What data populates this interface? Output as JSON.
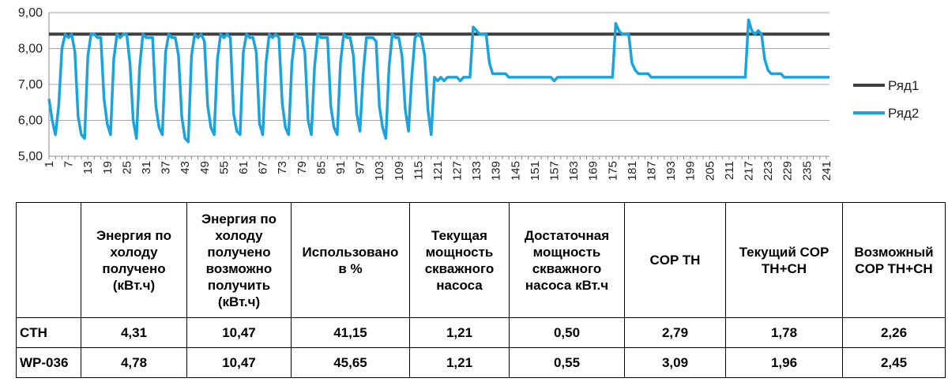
{
  "chart_data": {
    "type": "line",
    "title": "",
    "xlabel": "",
    "ylabel": "",
    "ylim": [
      5,
      9
    ],
    "yticks": [
      "5,00",
      "6,00",
      "7,00",
      "8,00",
      "9,00"
    ],
    "x_min": 1,
    "x_max": 242,
    "xticks": [
      1,
      7,
      13,
      19,
      25,
      31,
      37,
      43,
      49,
      55,
      61,
      67,
      73,
      79,
      85,
      91,
      97,
      103,
      109,
      115,
      121,
      127,
      133,
      139,
      145,
      151,
      157,
      163,
      169,
      175,
      181,
      187,
      193,
      199,
      205,
      211,
      217,
      223,
      229,
      235,
      241
    ],
    "grid": "horizontal",
    "legend": "right",
    "series": [
      {
        "name": "Ряд1",
        "color": "#404040",
        "points": [
          [
            1,
            8.4
          ],
          [
            242,
            8.4
          ]
        ]
      },
      {
        "name": "Ряд2",
        "color": "#1aa3dc",
        "points": [
          [
            1,
            6.6
          ],
          [
            2,
            6.0
          ],
          [
            3,
            5.6
          ],
          [
            4,
            6.4
          ],
          [
            5,
            8.0
          ],
          [
            6,
            8.4
          ],
          [
            7,
            8.3
          ],
          [
            8,
            8.4
          ],
          [
            9,
            7.9
          ],
          [
            10,
            6.1
          ],
          [
            11,
            5.6
          ],
          [
            12,
            5.5
          ],
          [
            13,
            7.8
          ],
          [
            14,
            8.4
          ],
          [
            15,
            8.4
          ],
          [
            16,
            8.3
          ],
          [
            17,
            8.3
          ],
          [
            18,
            6.6
          ],
          [
            19,
            5.9
          ],
          [
            20,
            5.6
          ],
          [
            21,
            7.7
          ],
          [
            22,
            8.4
          ],
          [
            23,
            8.3
          ],
          [
            24,
            8.4
          ],
          [
            25,
            8.4
          ],
          [
            26,
            7.6
          ],
          [
            27,
            6.0
          ],
          [
            28,
            5.5
          ],
          [
            29,
            7.5
          ],
          [
            30,
            8.4
          ],
          [
            31,
            8.3
          ],
          [
            32,
            8.3
          ],
          [
            33,
            8.3
          ],
          [
            34,
            6.4
          ],
          [
            35,
            5.8
          ],
          [
            36,
            5.6
          ],
          [
            37,
            7.9
          ],
          [
            38,
            8.4
          ],
          [
            39,
            8.3
          ],
          [
            40,
            8.3
          ],
          [
            41,
            7.8
          ],
          [
            42,
            6.1
          ],
          [
            43,
            5.5
          ],
          [
            44,
            5.4
          ],
          [
            45,
            7.8
          ],
          [
            46,
            8.4
          ],
          [
            47,
            8.3
          ],
          [
            48,
            8.4
          ],
          [
            49,
            8.2
          ],
          [
            50,
            6.4
          ],
          [
            51,
            5.8
          ],
          [
            52,
            5.6
          ],
          [
            53,
            7.7
          ],
          [
            54,
            8.4
          ],
          [
            55,
            8.3
          ],
          [
            56,
            8.4
          ],
          [
            57,
            8.3
          ],
          [
            58,
            6.2
          ],
          [
            59,
            5.7
          ],
          [
            60,
            5.6
          ],
          [
            61,
            7.9
          ],
          [
            62,
            8.4
          ],
          [
            63,
            8.3
          ],
          [
            64,
            8.3
          ],
          [
            65,
            7.9
          ],
          [
            66,
            5.9
          ],
          [
            67,
            5.6
          ],
          [
            68,
            7.6
          ],
          [
            69,
            8.4
          ],
          [
            70,
            8.3
          ],
          [
            71,
            8.4
          ],
          [
            72,
            8.3
          ],
          [
            73,
            6.5
          ],
          [
            74,
            5.8
          ],
          [
            75,
            5.6
          ],
          [
            76,
            7.6
          ],
          [
            77,
            8.4
          ],
          [
            78,
            8.3
          ],
          [
            79,
            8.3
          ],
          [
            80,
            7.9
          ],
          [
            81,
            6.0
          ],
          [
            82,
            5.6
          ],
          [
            83,
            7.5
          ],
          [
            84,
            8.4
          ],
          [
            85,
            8.3
          ],
          [
            86,
            8.3
          ],
          [
            87,
            8.3
          ],
          [
            88,
            6.4
          ],
          [
            89,
            5.8
          ],
          [
            90,
            5.6
          ],
          [
            91,
            7.6
          ],
          [
            92,
            8.4
          ],
          [
            93,
            8.3
          ],
          [
            94,
            8.3
          ],
          [
            95,
            7.8
          ],
          [
            96,
            6.2
          ],
          [
            97,
            5.7
          ],
          [
            98,
            7.3
          ],
          [
            99,
            8.3
          ],
          [
            100,
            8.3
          ],
          [
            101,
            8.3
          ],
          [
            102,
            8.2
          ],
          [
            103,
            6.4
          ],
          [
            104,
            5.8
          ],
          [
            105,
            5.5
          ],
          [
            106,
            7.5
          ],
          [
            107,
            8.4
          ],
          [
            108,
            8.3
          ],
          [
            109,
            8.3
          ],
          [
            110,
            7.8
          ],
          [
            111,
            6.3
          ],
          [
            112,
            5.7
          ],
          [
            113,
            7.2
          ],
          [
            114,
            8.3
          ],
          [
            115,
            8.4
          ],
          [
            116,
            8.3
          ],
          [
            117,
            7.8
          ],
          [
            118,
            6.3
          ],
          [
            119,
            5.6
          ],
          [
            120,
            7.2
          ],
          [
            121,
            7.1
          ],
          [
            122,
            7.2
          ],
          [
            123,
            7.1
          ],
          [
            124,
            7.2
          ],
          [
            125,
            7.2
          ],
          [
            126,
            7.2
          ],
          [
            127,
            7.2
          ],
          [
            128,
            7.1
          ],
          [
            129,
            7.2
          ],
          [
            130,
            7.2
          ],
          [
            131,
            7.2
          ],
          [
            132,
            8.6
          ],
          [
            133,
            8.5
          ],
          [
            134,
            8.4
          ],
          [
            135,
            8.4
          ],
          [
            136,
            8.4
          ],
          [
            137,
            7.6
          ],
          [
            138,
            7.3
          ],
          [
            139,
            7.3
          ],
          [
            140,
            7.3
          ],
          [
            141,
            7.3
          ],
          [
            142,
            7.3
          ],
          [
            143,
            7.2
          ],
          [
            144,
            7.2
          ],
          [
            145,
            7.2
          ],
          [
            146,
            7.2
          ],
          [
            147,
            7.2
          ],
          [
            148,
            7.2
          ],
          [
            149,
            7.2
          ],
          [
            150,
            7.2
          ],
          [
            151,
            7.2
          ],
          [
            152,
            7.2
          ],
          [
            153,
            7.2
          ],
          [
            154,
            7.2
          ],
          [
            155,
            7.2
          ],
          [
            156,
            7.2
          ],
          [
            157,
            7.1
          ],
          [
            158,
            7.2
          ],
          [
            159,
            7.2
          ],
          [
            160,
            7.2
          ],
          [
            161,
            7.2
          ],
          [
            162,
            7.2
          ],
          [
            163,
            7.2
          ],
          [
            164,
            7.2
          ],
          [
            165,
            7.2
          ],
          [
            166,
            7.2
          ],
          [
            167,
            7.2
          ],
          [
            168,
            7.2
          ],
          [
            169,
            7.2
          ],
          [
            170,
            7.2
          ],
          [
            171,
            7.2
          ],
          [
            172,
            7.2
          ],
          [
            173,
            7.2
          ],
          [
            174,
            7.2
          ],
          [
            175,
            7.2
          ],
          [
            176,
            8.7
          ],
          [
            177,
            8.5
          ],
          [
            178,
            8.4
          ],
          [
            179,
            8.4
          ],
          [
            180,
            8.4
          ],
          [
            181,
            7.6
          ],
          [
            182,
            7.4
          ],
          [
            183,
            7.3
          ],
          [
            184,
            7.3
          ],
          [
            185,
            7.3
          ],
          [
            186,
            7.3
          ],
          [
            187,
            7.2
          ],
          [
            188,
            7.2
          ],
          [
            189,
            7.2
          ],
          [
            190,
            7.2
          ],
          [
            191,
            7.2
          ],
          [
            192,
            7.2
          ],
          [
            193,
            7.2
          ],
          [
            194,
            7.2
          ],
          [
            195,
            7.2
          ],
          [
            196,
            7.2
          ],
          [
            197,
            7.2
          ],
          [
            198,
            7.2
          ],
          [
            199,
            7.2
          ],
          [
            200,
            7.2
          ],
          [
            201,
            7.2
          ],
          [
            202,
            7.2
          ],
          [
            203,
            7.2
          ],
          [
            204,
            7.2
          ],
          [
            205,
            7.2
          ],
          [
            206,
            7.2
          ],
          [
            207,
            7.2
          ],
          [
            208,
            7.2
          ],
          [
            209,
            7.2
          ],
          [
            210,
            7.2
          ],
          [
            211,
            7.2
          ],
          [
            212,
            7.2
          ],
          [
            213,
            7.2
          ],
          [
            214,
            7.2
          ],
          [
            215,
            7.2
          ],
          [
            216,
            7.2
          ],
          [
            217,
            8.8
          ],
          [
            218,
            8.5
          ],
          [
            219,
            8.4
          ],
          [
            220,
            8.5
          ],
          [
            221,
            8.4
          ],
          [
            222,
            7.7
          ],
          [
            223,
            7.4
          ],
          [
            224,
            7.3
          ],
          [
            225,
            7.3
          ],
          [
            226,
            7.3
          ],
          [
            227,
            7.3
          ],
          [
            228,
            7.2
          ],
          [
            229,
            7.2
          ],
          [
            230,
            7.2
          ],
          [
            231,
            7.2
          ],
          [
            232,
            7.2
          ],
          [
            233,
            7.2
          ],
          [
            234,
            7.2
          ],
          [
            235,
            7.2
          ],
          [
            236,
            7.2
          ],
          [
            237,
            7.2
          ],
          [
            238,
            7.2
          ],
          [
            239,
            7.2
          ],
          [
            240,
            7.2
          ],
          [
            241,
            7.2
          ],
          [
            242,
            7.2
          ]
        ]
      }
    ]
  },
  "table": {
    "headers": [
      "",
      "Энергия по\nхолоду\nполучено\n(кВт.ч)",
      "Энергия по\nхолоду\nполучено\nвозможно\nполучить\n(кВт.ч)",
      "Использовано\nв %",
      "Текущая\nмощность\nскважного\nнасоса",
      "Достаточная\nмощность\nскважного\nнасоса кВт.ч",
      "COP TH",
      "Текущий COP\nTH+CH",
      "Возможный\nCOP TH+CH"
    ],
    "rows": [
      [
        "CTH",
        "4,31",
        "10,47",
        "41,15",
        "1,21",
        "0,50",
        "2,79",
        "1,78",
        "2,26"
      ],
      [
        "WP-036",
        "4,78",
        "10,47",
        "45,65",
        "1,21",
        "0,55",
        "3,09",
        "1,96",
        "2,45"
      ]
    ]
  }
}
